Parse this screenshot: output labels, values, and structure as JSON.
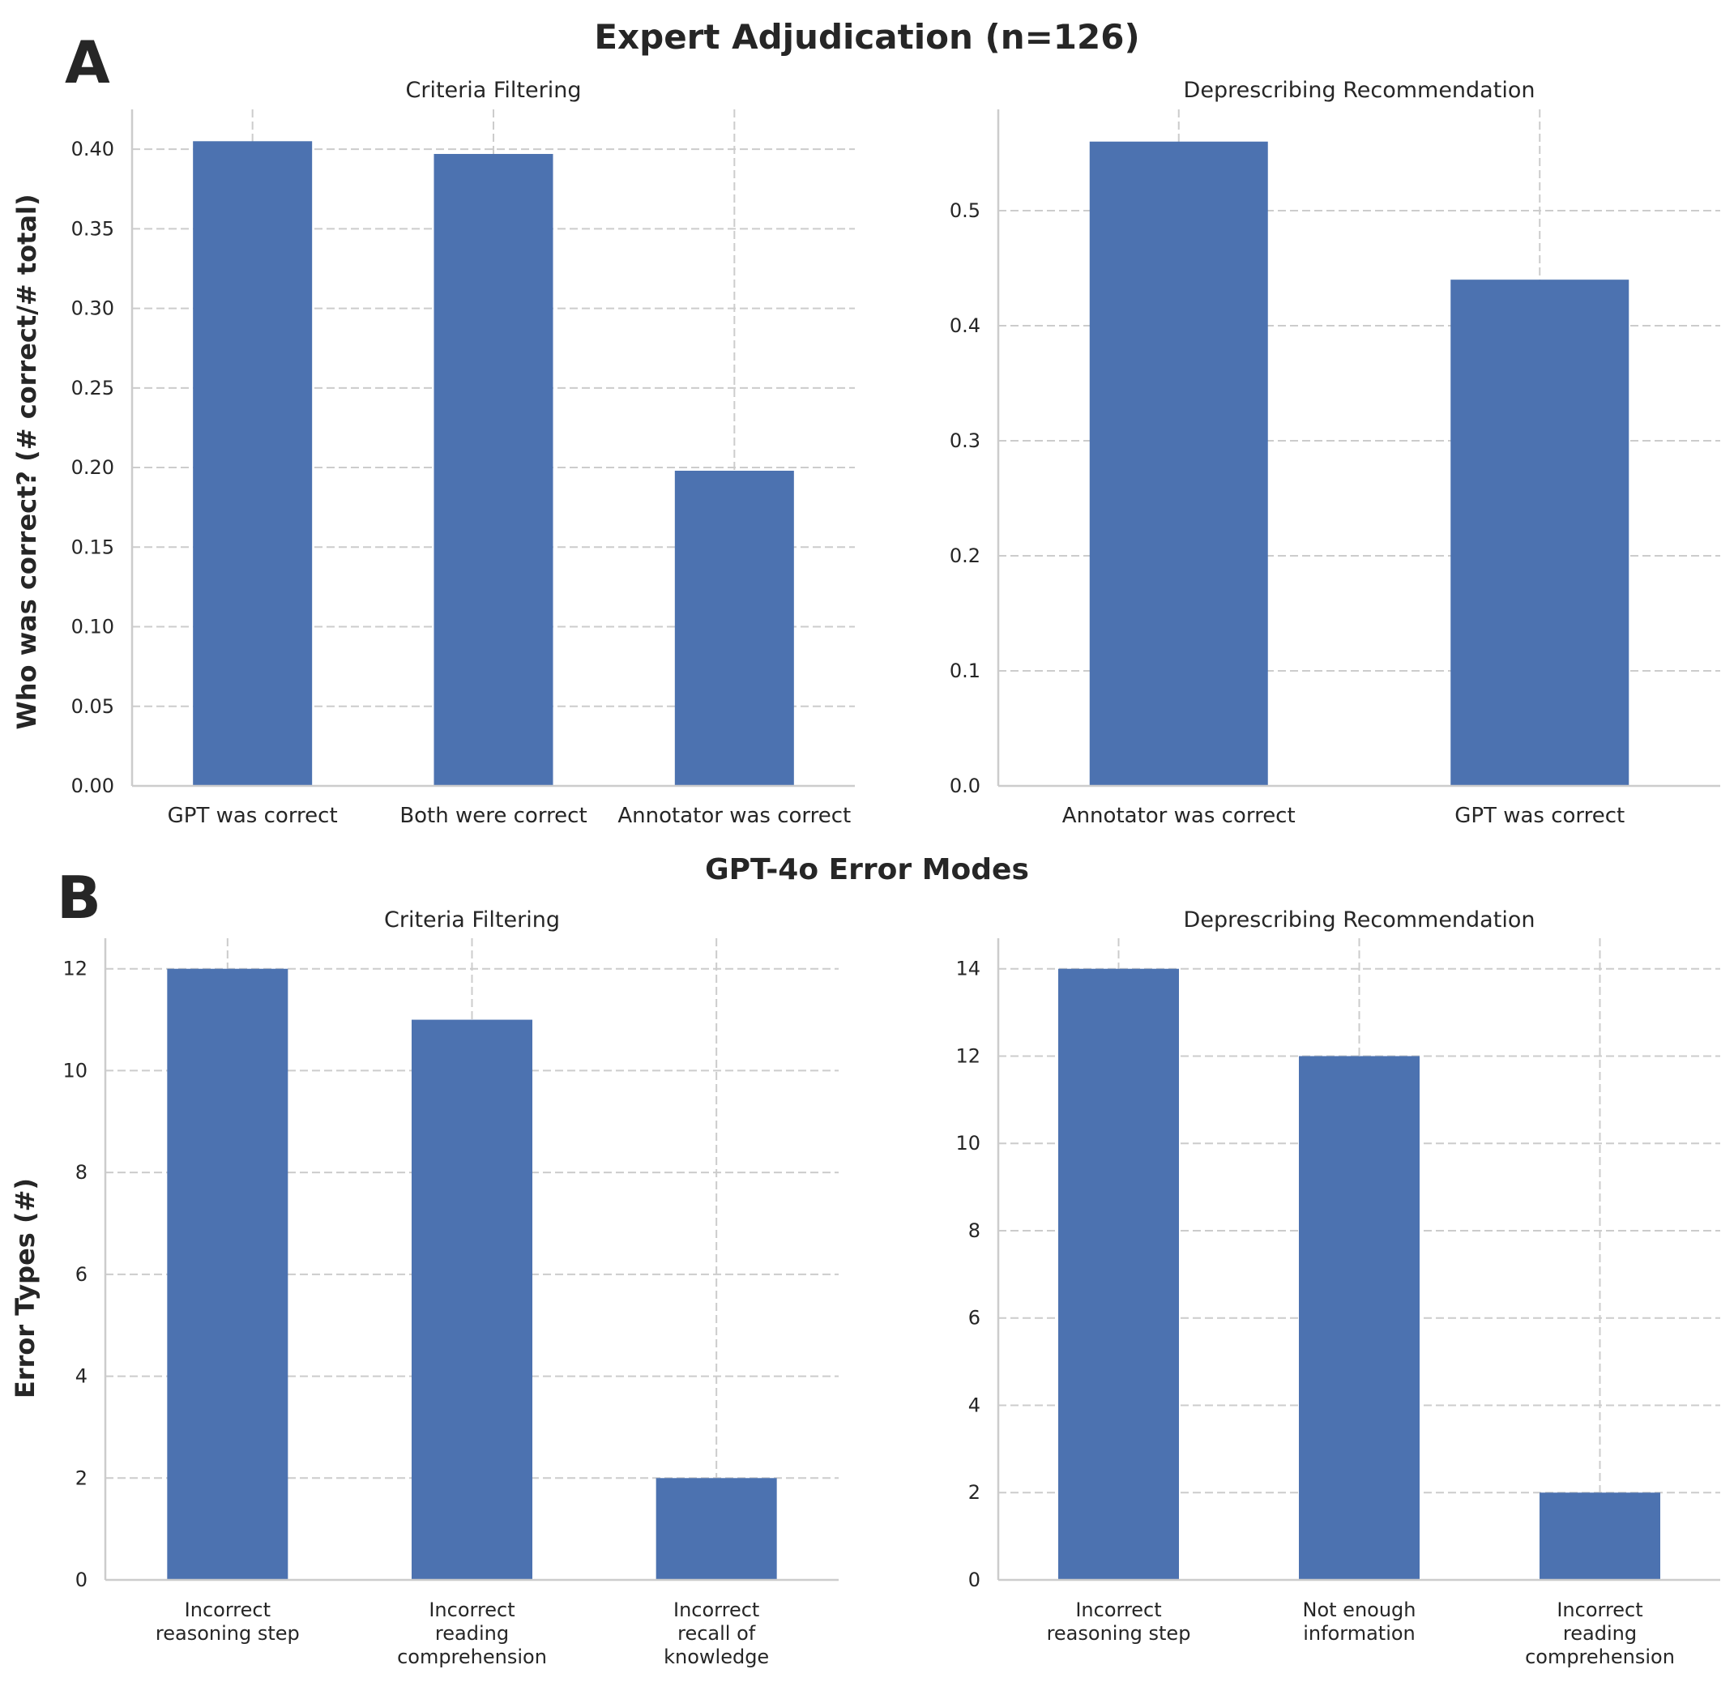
{
  "figure_titles": {
    "row_a": "Expert Adjudication (n=126)",
    "row_b": "GPT-4o Error Modes"
  },
  "panel_letters": {
    "a": "A",
    "b": "B"
  },
  "ylabels": {
    "row_a": "Who was correct? (# correct/# total)",
    "row_b": "Error Types (#)"
  },
  "colors": {
    "bar": "#4c72b0",
    "grid": "#cccccc",
    "text": "#262626"
  },
  "chart_data": [
    {
      "type": "bar",
      "title": "Criteria Filtering",
      "categories": [
        "GPT was correct",
        "Both were correct",
        "Annotator was correct"
      ],
      "values": [
        0.405,
        0.397,
        0.198
      ],
      "ylim": [
        0,
        0.425
      ],
      "yticks": [
        "0.00",
        "0.05",
        "0.10",
        "0.15",
        "0.20",
        "0.25",
        "0.30",
        "0.35",
        "0.40"
      ],
      "ytick_values": [
        0,
        0.05,
        0.1,
        0.15,
        0.2,
        0.25,
        0.3,
        0.35,
        0.4
      ],
      "grid": true
    },
    {
      "type": "bar",
      "title": "Deprescribing Recommendation",
      "categories": [
        "Annotator was correct",
        "GPT was correct"
      ],
      "values": [
        0.56,
        0.44
      ],
      "ylim": [
        0,
        0.588
      ],
      "yticks": [
        "0.0",
        "0.1",
        "0.2",
        "0.3",
        "0.4",
        "0.5"
      ],
      "ytick_values": [
        0,
        0.1,
        0.2,
        0.3,
        0.4,
        0.5
      ],
      "grid": true
    },
    {
      "type": "bar",
      "title": "Criteria Filtering",
      "categories": [
        [
          "Incorrect",
          "reasoning step"
        ],
        [
          "Incorrect",
          "reading",
          "comprehension"
        ],
        [
          "Incorrect",
          "recall of",
          "knowledge"
        ]
      ],
      "values": [
        12,
        11,
        2
      ],
      "ylim": [
        0,
        12.6
      ],
      "yticks": [
        "0",
        "2",
        "4",
        "6",
        "8",
        "10",
        "12"
      ],
      "ytick_values": [
        0,
        2,
        4,
        6,
        8,
        10,
        12
      ],
      "grid": true
    },
    {
      "type": "bar",
      "title": "Deprescribing Recommendation",
      "categories": [
        [
          "Incorrect",
          "reasoning step"
        ],
        [
          "Not enough",
          "information"
        ],
        [
          "Incorrect",
          "reading",
          "comprehension"
        ]
      ],
      "values": [
        14,
        12,
        2
      ],
      "ylim": [
        0,
        14.7
      ],
      "yticks": [
        "0",
        "2",
        "4",
        "6",
        "8",
        "10",
        "12",
        "14"
      ],
      "ytick_values": [
        0,
        2,
        4,
        6,
        8,
        10,
        12,
        14
      ],
      "grid": true
    }
  ]
}
